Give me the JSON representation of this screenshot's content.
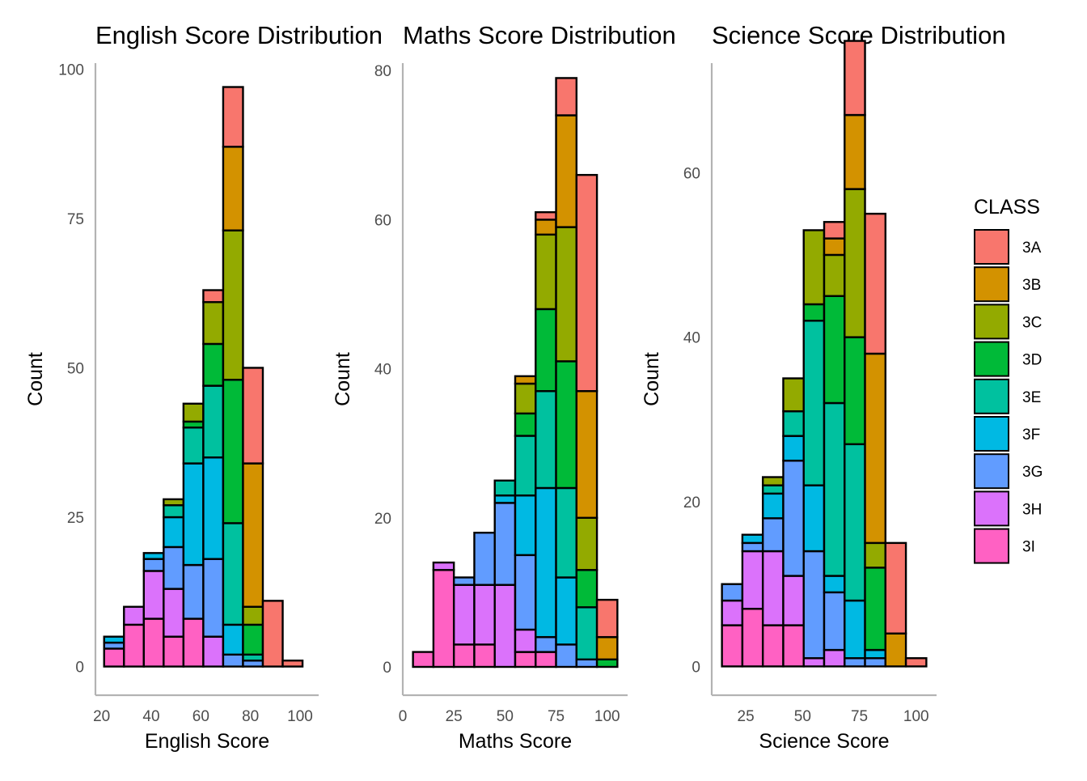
{
  "legend": {
    "title": "CLASS",
    "classes": [
      "3A",
      "3B",
      "3C",
      "3D",
      "3E",
      "3F",
      "3G",
      "3H",
      "3I"
    ],
    "colors": [
      "#F8766D",
      "#D39200",
      "#93AA00",
      "#00BA38",
      "#00C19F",
      "#00B9E3",
      "#619CFF",
      "#DB72FB",
      "#FF61C3"
    ]
  },
  "chart_data": [
    {
      "type": "bar",
      "stacked": true,
      "title": "English Score Distribution",
      "xlabel": "English Score",
      "ylabel": "Count",
      "xlim": [
        17.5,
        107.5
      ],
      "ylim": [
        -4.8,
        101
      ],
      "xticks": [
        20,
        40,
        60,
        80,
        100
      ],
      "yticks": [
        0,
        25,
        50,
        75,
        100
      ],
      "grid": false,
      "bin_width": 8,
      "bins": [
        {
          "x": 25,
          "counts": [
            0,
            0,
            0,
            0,
            0,
            1,
            1,
            0,
            3
          ]
        },
        {
          "x": 33,
          "counts": [
            0,
            0,
            0,
            0,
            0,
            0,
            0,
            3,
            7
          ]
        },
        {
          "x": 41,
          "counts": [
            0,
            0,
            0,
            0,
            0,
            1,
            2,
            8,
            8
          ]
        },
        {
          "x": 49,
          "counts": [
            0,
            0,
            1,
            0,
            2,
            5,
            7,
            8,
            5
          ]
        },
        {
          "x": 57,
          "counts": [
            0,
            0,
            3,
            1,
            6,
            17,
            9,
            0,
            8
          ]
        },
        {
          "x": 65,
          "counts": [
            2,
            0,
            7,
            7,
            12,
            17,
            13,
            5,
            0
          ]
        },
        {
          "x": 73,
          "counts": [
            10,
            14,
            25,
            24,
            17,
            5,
            2,
            0,
            0
          ]
        },
        {
          "x": 81,
          "counts": [
            16,
            24,
            3,
            5,
            1,
            0,
            1,
            0,
            0
          ]
        },
        {
          "x": 89,
          "counts": [
            11,
            0,
            0,
            0,
            0,
            0,
            0,
            0,
            0
          ]
        },
        {
          "x": 97,
          "counts": [
            1,
            0,
            0,
            0,
            0,
            0,
            0,
            0,
            0
          ]
        }
      ]
    },
    {
      "type": "bar",
      "stacked": true,
      "title": "Maths Score Distribution",
      "xlabel": "Maths Score",
      "ylabel": "Count",
      "xlim": [
        0,
        110
      ],
      "ylim": [
        -3.8,
        81
      ],
      "xticks": [
        0,
        25,
        50,
        75,
        100
      ],
      "yticks": [
        0,
        20,
        40,
        60,
        80
      ],
      "grid": false,
      "bin_width": 10,
      "bins": [
        {
          "x": 10,
          "counts": [
            0,
            0,
            0,
            0,
            0,
            0,
            0,
            0,
            2
          ]
        },
        {
          "x": 20,
          "counts": [
            0,
            0,
            0,
            0,
            0,
            0,
            0,
            1,
            13
          ]
        },
        {
          "x": 30,
          "counts": [
            0,
            0,
            0,
            0,
            0,
            0,
            1,
            8,
            3
          ]
        },
        {
          "x": 40,
          "counts": [
            0,
            0,
            0,
            0,
            0,
            0,
            7,
            8,
            3
          ]
        },
        {
          "x": 50,
          "counts": [
            0,
            0,
            0,
            0,
            2,
            1,
            11,
            11,
            0
          ]
        },
        {
          "x": 60,
          "counts": [
            0,
            1,
            4,
            3,
            8,
            8,
            10,
            3,
            2
          ]
        },
        {
          "x": 70,
          "counts": [
            1,
            2,
            10,
            11,
            13,
            20,
            2,
            0,
            2
          ]
        },
        {
          "x": 80,
          "counts": [
            5,
            15,
            18,
            17,
            12,
            9,
            3,
            0,
            0
          ]
        },
        {
          "x": 90,
          "counts": [
            29,
            17,
            7,
            5,
            7,
            0,
            1,
            0,
            0
          ]
        },
        {
          "x": 100,
          "counts": [
            5,
            3,
            0,
            1,
            0,
            0,
            0,
            0,
            0
          ]
        }
      ]
    },
    {
      "type": "bar",
      "stacked": true,
      "title": "Science Score Distribution",
      "xlabel": "Science Score",
      "ylabel": "Count",
      "xlim": [
        10,
        109
      ],
      "ylim": [
        -3.5,
        73.3
      ],
      "xticks": [
        25,
        50,
        75,
        100
      ],
      "yticks": [
        0,
        20,
        40,
        60
      ],
      "grid": false,
      "bin_width": 9,
      "bins": [
        {
          "x": 19,
          "counts": [
            0,
            0,
            0,
            0,
            0,
            0,
            2,
            3,
            5
          ]
        },
        {
          "x": 28,
          "counts": [
            0,
            0,
            0,
            0,
            0,
            1,
            1,
            7,
            7
          ]
        },
        {
          "x": 37,
          "counts": [
            0,
            0,
            1,
            0,
            1,
            3,
            4,
            9,
            5
          ]
        },
        {
          "x": 46,
          "counts": [
            0,
            0,
            4,
            0,
            3,
            3,
            14,
            6,
            5
          ]
        },
        {
          "x": 55,
          "counts": [
            0,
            0,
            9,
            2,
            20,
            8,
            13,
            1,
            0
          ]
        },
        {
          "x": 64,
          "counts": [
            2,
            2,
            5,
            13,
            21,
            2,
            7,
            2,
            0
          ]
        },
        {
          "x": 73,
          "counts": [
            9,
            9,
            18,
            13,
            19,
            7,
            1,
            0,
            0
          ]
        },
        {
          "x": 82,
          "counts": [
            17,
            23,
            3,
            10,
            0,
            1,
            1,
            0,
            0
          ]
        },
        {
          "x": 91,
          "counts": [
            11,
            4,
            0,
            0,
            0,
            0,
            0,
            0,
            0
          ]
        },
        {
          "x": 100,
          "counts": [
            1,
            0,
            0,
            0,
            0,
            0,
            0,
            0,
            0
          ]
        }
      ]
    }
  ]
}
